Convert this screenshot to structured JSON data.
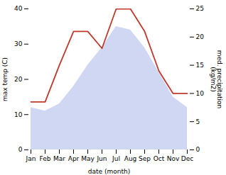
{
  "chart_data": {
    "type": "area",
    "categories": [
      "Jan",
      "Feb",
      "Mar",
      "Apr",
      "May",
      "Jun",
      "Jul",
      "Aug",
      "Sep",
      "Oct",
      "Nov",
      "Dec"
    ],
    "xlabel": "date (month)",
    "ylabel": "max temp (C)",
    "y2label": "med. precipitation\n(kg/m2)",
    "series": [
      {
        "type": "area",
        "color": "#c8d0f0",
        "values": [
          12,
          11,
          13,
          18,
          24,
          29,
          35,
          34,
          29,
          22,
          15,
          12
        ]
      },
      {
        "type": "line",
        "color": "#c0392b",
        "axis": "y2",
        "values": [
          8.5,
          8.5,
          15,
          21,
          21,
          18,
          25,
          25,
          21,
          14,
          10,
          10
        ]
      }
    ],
    "ylim": [
      0,
      40
    ],
    "yticks": [
      0,
      10,
      20,
      30,
      40
    ],
    "y2lim": [
      0,
      25
    ],
    "y2ticks": [
      0,
      5,
      10,
      15,
      20,
      25
    ],
    "grid": false
  }
}
